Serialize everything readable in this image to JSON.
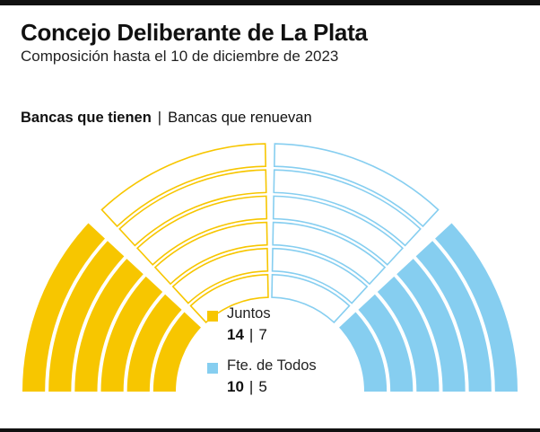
{
  "title": "Concejo Deliberante de La Plata",
  "subtitle": "Composición hasta el 10 de diciembre de 2023",
  "legend_header": {
    "held_label": "Bancas que tienen",
    "separator": "|",
    "renew_label": "Bancas que renuevan"
  },
  "chart_data": {
    "type": "parliament",
    "title": "Concejo Deliberante de La Plata",
    "subtitle": "Composición hasta el 10 de diciembre de 2023",
    "total_seats": 24,
    "series": [
      {
        "name": "Juntos",
        "seats_held": 14,
        "seats_renewing": 7,
        "color": "#F7C600"
      },
      {
        "name": "Fte. de Todos",
        "seats_held": 10,
        "seats_renewing": 5,
        "color": "#86CEF0"
      }
    ],
    "legend_separator": "|"
  }
}
